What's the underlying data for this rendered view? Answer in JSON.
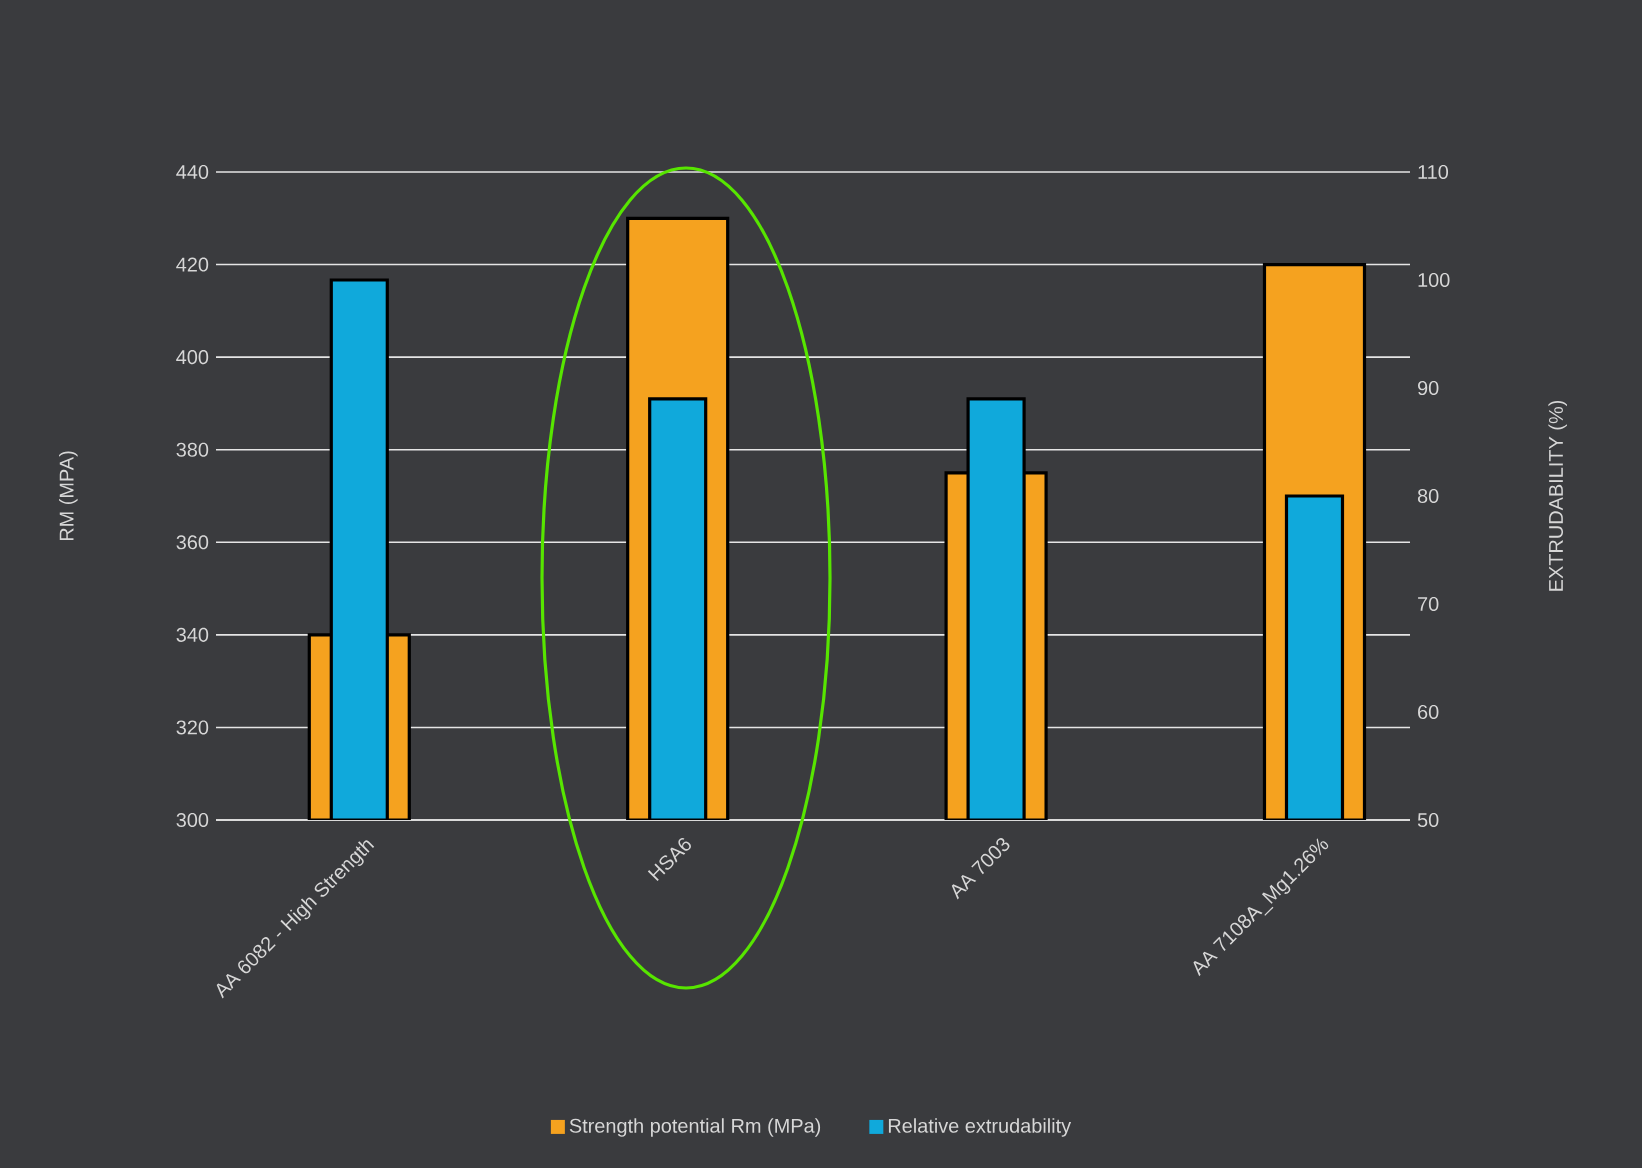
{
  "chart_data": {
    "type": "bar",
    "categories": [
      "AA 6082 - High Strength",
      "HSA6",
      "AA 7003",
      "AA 7108A_Mg1.26%"
    ],
    "series": [
      {
        "name": "Strength potential Rm (MPa)",
        "color": "#f5a21f",
        "values": [
          340,
          430,
          375,
          420
        ]
      },
      {
        "name": "Relative extrudability",
        "color": "#10a9db",
        "values": [
          100,
          89,
          89,
          80
        ],
        "axis": "y2"
      }
    ],
    "ylabel": "RM (MPA)",
    "y2label": "EXTRUDABILITY (%)",
    "ylim": [
      300,
      440
    ],
    "yticks": [
      300,
      320,
      340,
      360,
      380,
      400,
      420,
      440
    ],
    "y2lim": [
      50,
      110
    ],
    "y2ticks": [
      50,
      60,
      70,
      80,
      90,
      100,
      110
    ],
    "grid": "y",
    "legend": "bottom"
  }
}
